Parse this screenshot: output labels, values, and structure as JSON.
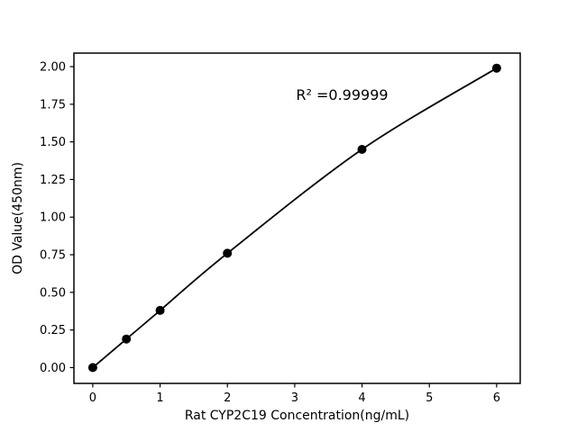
{
  "chart_data": {
    "type": "scatter",
    "x": [
      0,
      0.5,
      1,
      2,
      4,
      6
    ],
    "y": [
      0.0,
      0.19,
      0.38,
      0.76,
      1.45,
      1.99
    ],
    "fit_curve": true,
    "title": "",
    "xlabel": "Rat CYP2C19 Concentration(ng/mL)",
    "ylabel": "OD Value(450nm)",
    "xlim": [
      -0.28,
      6.35
    ],
    "ylim": [
      -0.105,
      2.09
    ],
    "x_ticks": {
      "values": [
        0,
        1,
        2,
        3,
        4,
        5,
        6
      ],
      "labels": [
        "0",
        "1",
        "2",
        "3",
        "4",
        "5",
        "6"
      ]
    },
    "y_ticks": {
      "values": [
        0,
        0.25,
        0.5,
        0.75,
        1.0,
        1.25,
        1.5,
        1.75,
        2.0
      ],
      "labels": [
        "0.00",
        "0.25",
        "0.50",
        "0.75",
        "1.00",
        "1.25",
        "1.50",
        "1.75",
        "2.00"
      ]
    },
    "annotation": {
      "text": "R² =0.99999",
      "x": 3.02,
      "y": 1.78,
      "r_squared": 0.99999
    },
    "grid": false,
    "legend": null,
    "colors": {
      "line": "#000000",
      "marker": "#000000",
      "text": "#000000",
      "frame": "#000000",
      "background": "#ffffff"
    }
  }
}
